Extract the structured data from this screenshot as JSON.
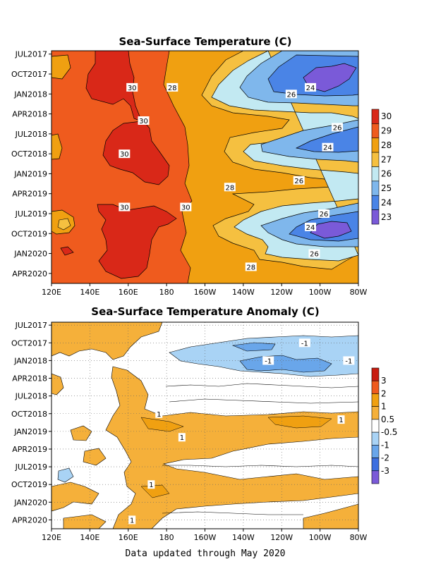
{
  "footer": "Data updated through May 2020",
  "chart_data": [
    {
      "type": "heatmap",
      "title": "Sea-Surface Temperature (C)",
      "x_ticks": [
        "120E",
        "140E",
        "160E",
        "180",
        "160W",
        "140W",
        "120W",
        "100W",
        "80W"
      ],
      "y_ticks": [
        "JUL2017",
        "OCT2017",
        "JAN2018",
        "APR2018",
        "JUL2018",
        "OCT2018",
        "JAN2019",
        "APR2019",
        "JUL2019",
        "OCT2019",
        "JAN2020",
        "APR2020"
      ],
      "xlim": [
        "120E",
        "80W"
      ],
      "ylim": [
        "JUL2017",
        "MAY2020"
      ],
      "colorbar": {
        "levels": [
          "30",
          "29",
          "28",
          "27",
          "26",
          "25",
          "24",
          "23"
        ],
        "colors": [
          "#d92818",
          "#ef5b1e",
          "#f0a011",
          "#f5c040",
          "#c2e9f2",
          "#7fb7ec",
          "#4a84e6",
          "#7a5ad8"
        ]
      },
      "contour_labels": [
        {
          "text": "30",
          "lon": 162,
          "month": "DEC2017"
        },
        {
          "text": "28",
          "lon": 183,
          "month": "DEC2017"
        },
        {
          "text": "26",
          "lon": 245,
          "month": "JAN2018"
        },
        {
          "text": "24",
          "lon": 255,
          "month": "DEC2017"
        },
        {
          "text": "30",
          "lon": 168,
          "month": "MAY2018"
        },
        {
          "text": "26",
          "lon": 269,
          "month": "JUN2018"
        },
        {
          "text": "30",
          "lon": 158,
          "month": "OCT2018"
        },
        {
          "text": "24",
          "lon": 264,
          "month": "SEP2018"
        },
        {
          "text": "26",
          "lon": 249,
          "month": "FEB2019"
        },
        {
          "text": "28",
          "lon": 213,
          "month": "MAR2019"
        },
        {
          "text": "30",
          "lon": 158,
          "month": "JUN2019"
        },
        {
          "text": "30",
          "lon": 190,
          "month": "JUN2019"
        },
        {
          "text": "26",
          "lon": 262,
          "month": "JUL2019"
        },
        {
          "text": "24",
          "lon": 255,
          "month": "SEP2019"
        },
        {
          "text": "26",
          "lon": 257,
          "month": "JAN2020"
        },
        {
          "text": "28",
          "lon": 224,
          "month": "MAR2020"
        }
      ]
    },
    {
      "type": "heatmap",
      "title": "Sea-Surface Temperature Anomaly (C)",
      "x_ticks": [
        "120E",
        "140E",
        "160E",
        "180",
        "160W",
        "140W",
        "120W",
        "100W",
        "80W"
      ],
      "y_ticks": [
        "JUL2017",
        "OCT2017",
        "JAN2018",
        "APR2018",
        "JUL2018",
        "OCT2018",
        "JAN2019",
        "APR2019",
        "JUL2019",
        "OCT2019",
        "JAN2020",
        "APR2020"
      ],
      "xlim": [
        "120E",
        "80W"
      ],
      "ylim": [
        "JUL2017",
        "MAY2020"
      ],
      "colorbar": {
        "levels": [
          "3",
          "2",
          "1",
          "0.5",
          "-0.5",
          "-1",
          "-2",
          "-3"
        ],
        "colors": [
          "#c81c10",
          "#ef5b1e",
          "#f0a011",
          "#f5b03a",
          "#ffffff",
          "#a9d3f5",
          "#69a6ea",
          "#3d6fe0",
          "#7a5ad8"
        ]
      },
      "contour_labels": [
        {
          "text": "-1",
          "lon": 252,
          "month": "OCT2017"
        },
        {
          "text": "-1",
          "lon": 233,
          "month": "JAN2018"
        },
        {
          "text": "-1",
          "lon": 275,
          "month": "JAN2018"
        },
        {
          "text": "1",
          "lon": 176,
          "month": "OCT2018"
        },
        {
          "text": "1",
          "lon": 271,
          "month": "NOV2018"
        },
        {
          "text": "1",
          "lon": 188,
          "month": "FEB2019"
        },
        {
          "text": "1",
          "lon": 172,
          "month": "OCT2019"
        },
        {
          "text": "1",
          "lon": 162,
          "month": "APR2020"
        }
      ]
    }
  ]
}
